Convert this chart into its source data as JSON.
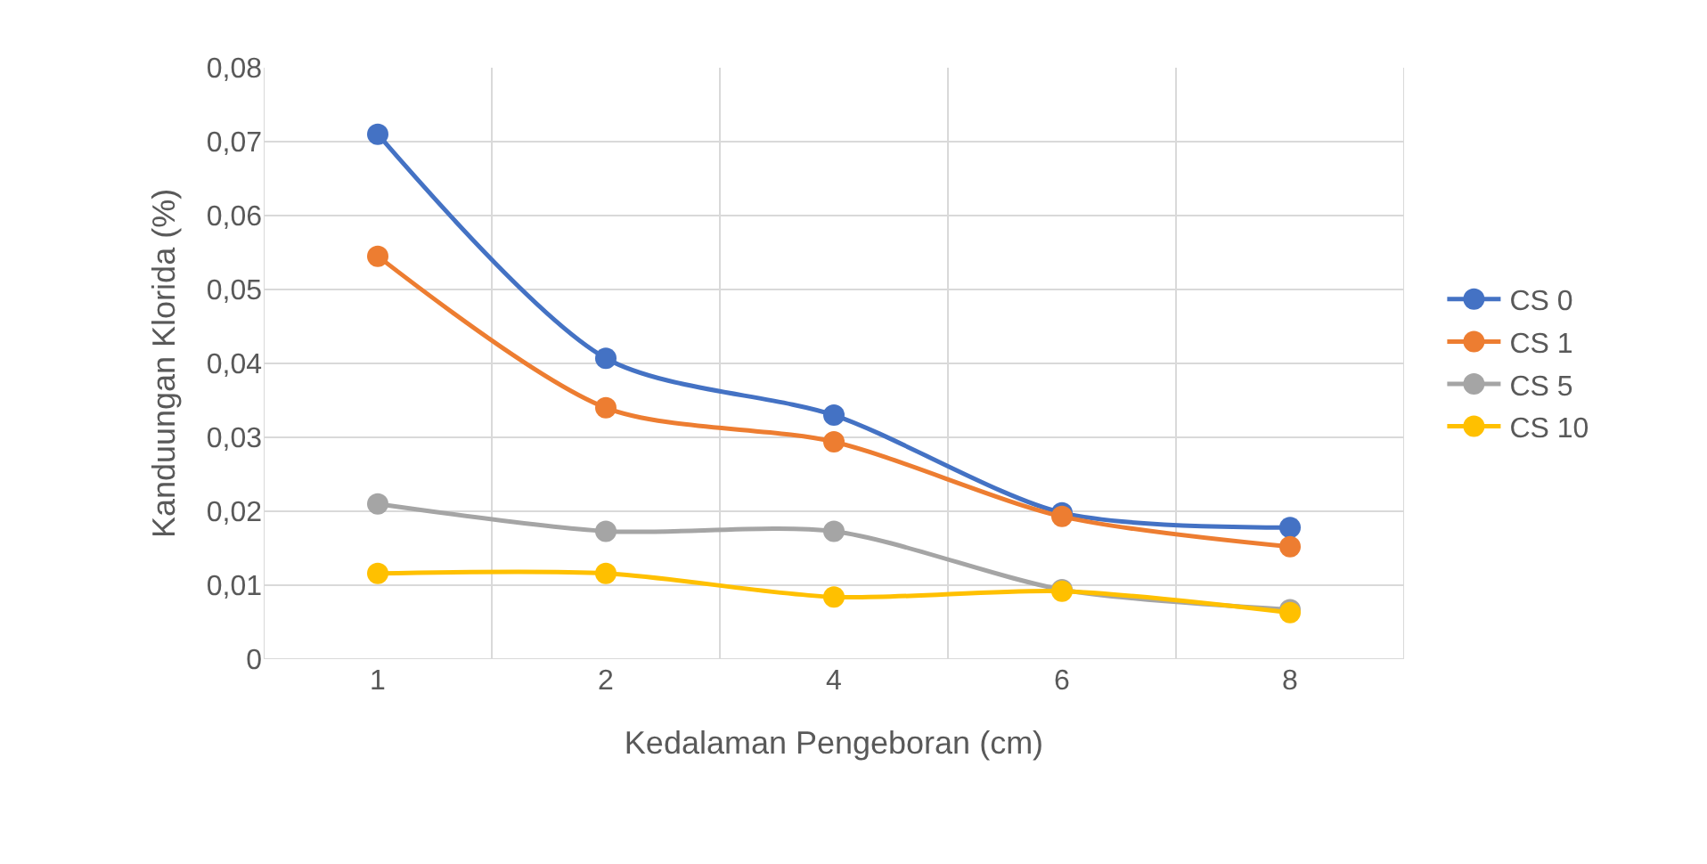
{
  "chart_data": {
    "type": "line",
    "xlabel": "Kedalaman Pengeboran (cm)",
    "ylabel": "Kanduungan Klorida (%)",
    "categories": [
      "1",
      "2",
      "4",
      "6",
      "8"
    ],
    "series": [
      {
        "name": "CS 0",
        "color": "#4472c4",
        "values": [
          0.071,
          0.0407,
          0.033,
          0.0198,
          0.0178
        ]
      },
      {
        "name": "CS 1",
        "color": "#ed7d31",
        "values": [
          0.0545,
          0.034,
          0.0294,
          0.0193,
          0.0152
        ]
      },
      {
        "name": "CS 5",
        "color": "#a5a5a5",
        "values": [
          0.021,
          0.0173,
          0.0173,
          0.0094,
          0.0067
        ]
      },
      {
        "name": "CS 10",
        "color": "#ffc000",
        "values": [
          0.0116,
          0.0116,
          0.0084,
          0.0092,
          0.0063
        ]
      }
    ],
    "ylim": [
      0,
      0.08
    ],
    "yticks": [
      0,
      {
        "value": 0.01,
        "label": "0,01"
      },
      {
        "value": 0.02,
        "label": "0,02"
      },
      {
        "value": 0.03,
        "label": "0,03"
      },
      {
        "value": 0.04,
        "label": "0,04"
      },
      {
        "value": 0.05,
        "label": "0,05"
      },
      {
        "value": 0.06,
        "label": "0,06"
      },
      {
        "value": 0.07,
        "label": "0,07"
      },
      {
        "value": 0.08,
        "label": "0,08"
      }
    ],
    "grid": true,
    "legend": "right",
    "marker": "circle",
    "line_style": "solid"
  }
}
